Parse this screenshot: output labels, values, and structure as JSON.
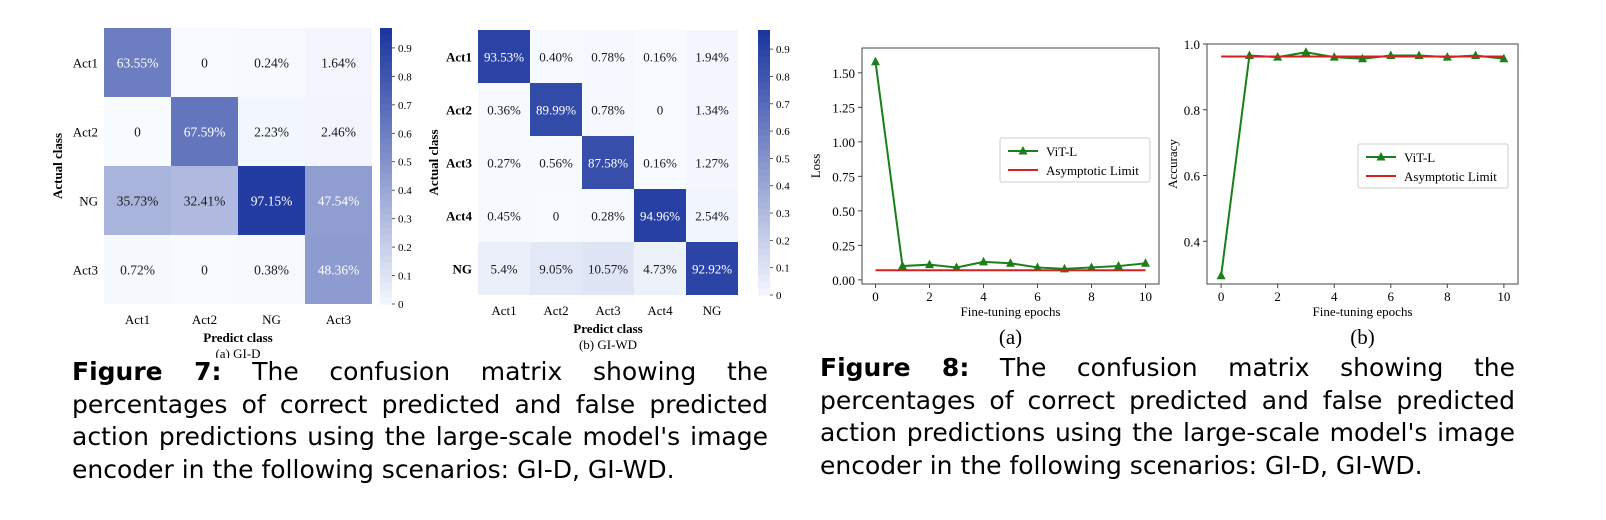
{
  "figure7": {
    "panel_a": {
      "classes": [
        "Act1",
        "Act2",
        "NG",
        "Act3"
      ],
      "values": [
        [
          63.55,
          0,
          0.24,
          1.64
        ],
        [
          0,
          67.59,
          2.23,
          2.46
        ],
        [
          35.73,
          32.41,
          97.15,
          47.54
        ],
        [
          0.72,
          0,
          0.38,
          48.36
        ]
      ],
      "cells": [
        [
          "63.55%",
          "0",
          "0.24%",
          "1.64%"
        ],
        [
          "0",
          "67.59%",
          "2.23%",
          "2.46%"
        ],
        [
          "35.73%",
          "32.41%",
          "97.15%",
          "47.54%"
        ],
        [
          "0.72%",
          "0",
          "0.38%",
          "48.36%"
        ]
      ],
      "xlabel": "Predict class",
      "ylabel": "Actual class",
      "sublabel": "(a) GI-D",
      "colorbar_ticks": [
        "0.9",
        "0.8",
        "0.7",
        "0.6",
        "0.5",
        "0.4",
        "0.3",
        "0.2",
        "0.1",
        "0"
      ]
    },
    "panel_b": {
      "classes": [
        "Act1",
        "Act2",
        "Act3",
        "Act4",
        "NG"
      ],
      "values": [
        [
          93.53,
          0.4,
          0.78,
          0.16,
          1.94
        ],
        [
          0.36,
          89.99,
          0.78,
          0,
          1.34
        ],
        [
          0.27,
          0.56,
          87.58,
          0.16,
          1.27
        ],
        [
          0.45,
          0,
          0.28,
          94.96,
          2.54
        ],
        [
          5.4,
          9.05,
          10.57,
          4.73,
          92.92
        ]
      ],
      "cells": [
        [
          "93.53%",
          "0.40%",
          "0.78%",
          "0.16%",
          "1.94%"
        ],
        [
          "0.36%",
          "89.99%",
          "0.78%",
          "0",
          "1.34%"
        ],
        [
          "0.27%",
          "0.56%",
          "87.58%",
          "0.16%",
          "1.27%"
        ],
        [
          "0.45%",
          "0",
          "0.28%",
          "94.96%",
          "2.54%"
        ],
        [
          "5.4%",
          "9.05%",
          "10.57%",
          "4.73%",
          "92.92%"
        ]
      ],
      "xlabel": "Predict class",
      "ylabel": "Actual class",
      "sublabel": "(b) GI-WD",
      "colorbar_ticks": [
        "0.9",
        "0.8",
        "0.7",
        "0.6",
        "0.5",
        "0.4",
        "0.3",
        "0.2",
        "0.1",
        "0"
      ]
    },
    "caption_label": "Figure 7:",
    "caption_text": "The confusion matrix showing the percentages of correct predicted and false predicted action predictions using the large-scale model's image encoder in the following scenarios: GI-D, GI-WD."
  },
  "figure8": {
    "caption_label": "Figure 8:",
    "caption_text": "The confusion matrix showing the percentages of correct predicted and false predicted action predictions using the large-scale model's image encoder in the following scenarios: GI-D, GI-WD."
  },
  "chart_data": [
    {
      "type": "line",
      "sublabel": "(a)",
      "xlabel": "Fine-tuning epochs",
      "ylabel": "Loss",
      "x": [
        0,
        1,
        2,
        3,
        4,
        5,
        6,
        7,
        8,
        9,
        10
      ],
      "xticks": [
        "0",
        "2",
        "4",
        "6",
        "8",
        "10"
      ],
      "yticks": [
        "0.00",
        "0.25",
        "0.50",
        "0.75",
        "1.00",
        "1.25",
        "1.50"
      ],
      "xlim": [
        -0.5,
        10.5
      ],
      "ylim": [
        -0.03,
        1.68
      ],
      "series": [
        {
          "name": "ViT-L",
          "color": "#1a7f1a",
          "marker": "triangle",
          "values": [
            1.58,
            0.1,
            0.11,
            0.09,
            0.13,
            0.12,
            0.09,
            0.08,
            0.09,
            0.1,
            0.12
          ]
        },
        {
          "name": "Asymptotic Limit",
          "color": "#d62020",
          "marker": "none",
          "values": [
            0.07,
            0.07,
            0.07,
            0.07,
            0.07,
            0.07,
            0.07,
            0.07,
            0.07,
            0.07,
            0.07
          ]
        }
      ],
      "legend": "center-right",
      "grid": false
    },
    {
      "type": "line",
      "sublabel": "(b)",
      "xlabel": "Fine-tuning epochs",
      "ylabel": "Accuracy",
      "x": [
        0,
        1,
        2,
        3,
        4,
        5,
        6,
        7,
        8,
        9,
        10
      ],
      "xticks": [
        "0",
        "2",
        "4",
        "6",
        "8",
        "10"
      ],
      "yticks": [
        "0.4",
        "0.6",
        "0.8",
        "1.0"
      ],
      "xlim": [
        -0.5,
        10.5
      ],
      "ylim": [
        0.27,
        1.0
      ],
      "series": [
        {
          "name": "ViT-L",
          "color": "#1a7f1a",
          "marker": "triangle",
          "values": [
            0.295,
            0.965,
            0.96,
            0.975,
            0.96,
            0.955,
            0.965,
            0.965,
            0.96,
            0.965,
            0.955
          ]
        },
        {
          "name": "Asymptotic Limit",
          "color": "#d62020",
          "marker": "none",
          "values": [
            0.962,
            0.962,
            0.962,
            0.962,
            0.962,
            0.962,
            0.962,
            0.962,
            0.962,
            0.962,
            0.962
          ]
        }
      ],
      "legend": "center-right",
      "grid": false
    }
  ]
}
